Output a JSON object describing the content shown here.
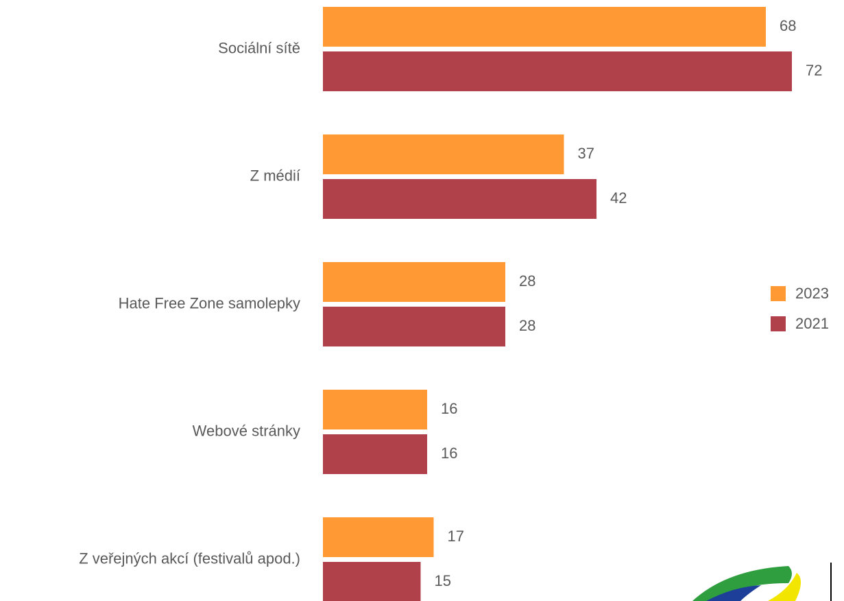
{
  "chart_data": {
    "type": "barh",
    "categories": [
      "Sociální sítě",
      "Z médií",
      "Hate Free Zone samolepky",
      "Webové stránky",
      "Z veřejných akcí (festivalů apod.)"
    ],
    "series": [
      {
        "name": "2023",
        "color": "#FF9933",
        "values": [
          68,
          37,
          28,
          16,
          17
        ]
      },
      {
        "name": "2021",
        "color": "#B0414A",
        "values": [
          72,
          42,
          28,
          16,
          15
        ]
      }
    ],
    "legend": "right"
  }
}
